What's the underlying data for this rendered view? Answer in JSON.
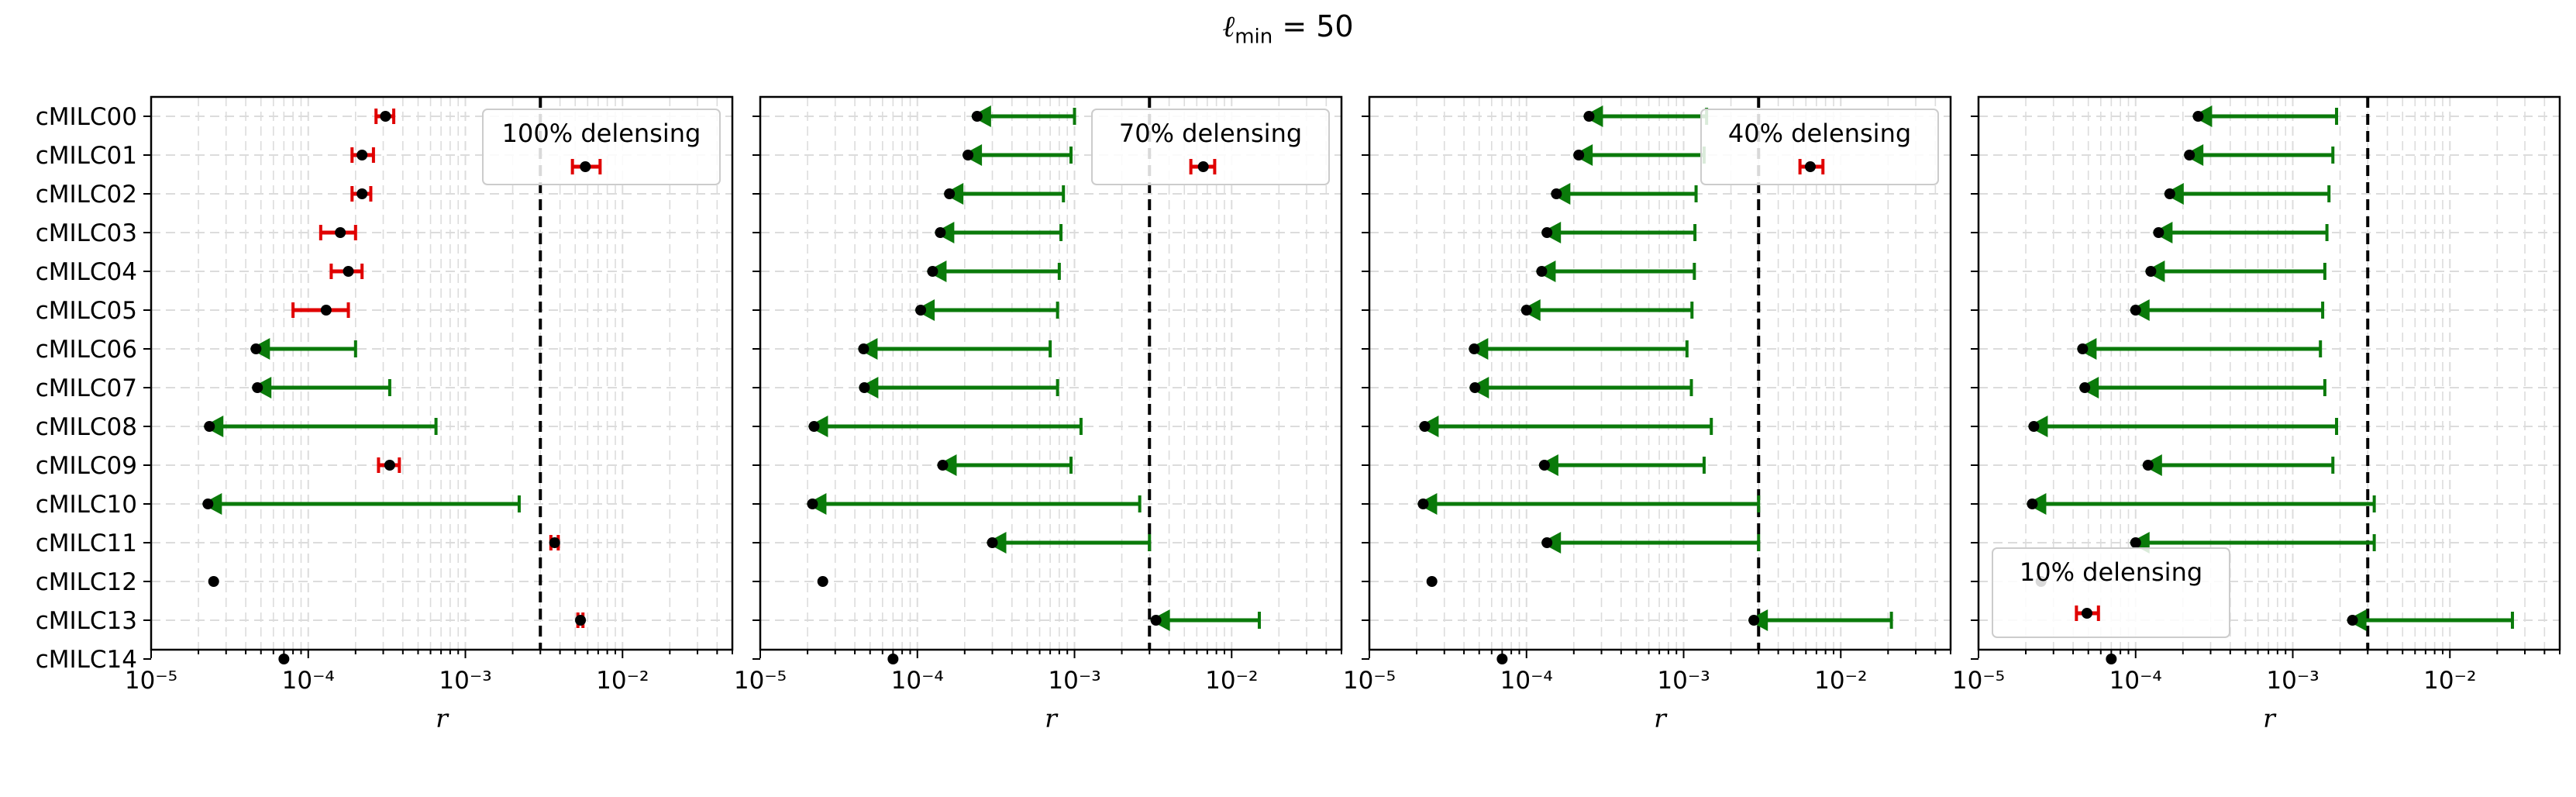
{
  "title": {
    "prefix": "ℓ",
    "sub": "min",
    "suffix": " = 50"
  },
  "colors": {
    "detection": "#e00000",
    "upper_limit": "#0a7a0a",
    "point": "#000000",
    "reference_line": "#000000",
    "grid": "#dcdcdc"
  },
  "chart_data": [
    {
      "type": "scatter",
      "legend": "100% delensing",
      "legend_placement": "top-right",
      "categories": [
        "cMILC00",
        "cMILC01",
        "cMILC02",
        "cMILC03",
        "cMILC04",
        "cMILC05",
        "cMILC06",
        "cMILC07",
        "cMILC08",
        "cMILC09",
        "cMILC10",
        "cMILC11",
        "cMILC12",
        "cMILC13",
        "cMILC14"
      ],
      "xscale": "log",
      "xlim": [
        1e-05,
        0.05
      ],
      "xlabel": "r",
      "xtick_labels": [
        "10⁻⁵",
        "10⁻⁴",
        "10⁻³",
        "10⁻²"
      ],
      "grid": true,
      "reference_line": 0.003,
      "points": [
        {
          "kind": "detection",
          "x": 0.00031,
          "lo": 0.00027,
          "hi": 0.00035
        },
        {
          "kind": "detection",
          "x": 0.00022,
          "lo": 0.00019,
          "hi": 0.00026
        },
        {
          "kind": "detection",
          "x": 0.00022,
          "lo": 0.00019,
          "hi": 0.00025
        },
        {
          "kind": "detection",
          "x": 0.00016,
          "lo": 0.00012,
          "hi": 0.0002
        },
        {
          "kind": "detection",
          "x": 0.00018,
          "lo": 0.00014,
          "hi": 0.00022
        },
        {
          "kind": "detection",
          "x": 0.00013,
          "lo": 8e-05,
          "hi": 0.00018
        },
        {
          "kind": "upper_limit",
          "x": 4.65e-05,
          "hi": 0.0002
        },
        {
          "kind": "upper_limit",
          "x": 4.75e-05,
          "hi": 0.00033
        },
        {
          "kind": "upper_limit",
          "x": 2.35e-05,
          "hi": 0.00065
        },
        {
          "kind": "detection",
          "x": 0.00033,
          "lo": 0.00028,
          "hi": 0.00038
        },
        {
          "kind": "upper_limit",
          "x": 2.3e-05,
          "hi": 0.0022
        },
        {
          "kind": "detection",
          "x": 0.0037,
          "lo": 0.0035,
          "hi": 0.0039
        },
        {
          "kind": "point",
          "x": 2.5e-05
        },
        {
          "kind": "detection",
          "x": 0.0054,
          "lo": 0.0052,
          "hi": 0.0056
        },
        {
          "kind": "point",
          "x": 7e-05
        }
      ],
      "legend_marker": {
        "kind": "detection",
        "x": 0.0058,
        "lo": 0.0048,
        "hi": 0.0072
      }
    },
    {
      "type": "scatter",
      "legend": "70% delensing",
      "legend_placement": "top-right",
      "categories": [
        "cMILC00",
        "cMILC01",
        "cMILC02",
        "cMILC03",
        "cMILC04",
        "cMILC05",
        "cMILC06",
        "cMILC07",
        "cMILC08",
        "cMILC09",
        "cMILC10",
        "cMILC11",
        "cMILC12",
        "cMILC13",
        "cMILC14"
      ],
      "xscale": "log",
      "xlim": [
        1e-05,
        0.05
      ],
      "xlabel": "r",
      "xtick_labels": [
        "10⁻⁵",
        "10⁻⁴",
        "10⁻³",
        "10⁻²"
      ],
      "grid": true,
      "reference_line": 0.003,
      "points": [
        {
          "kind": "upper_limit",
          "x": 0.00024,
          "hi": 0.001
        },
        {
          "kind": "upper_limit",
          "x": 0.00021,
          "hi": 0.00095
        },
        {
          "kind": "upper_limit",
          "x": 0.00016,
          "hi": 0.00085
        },
        {
          "kind": "upper_limit",
          "x": 0.00014,
          "hi": 0.00082
        },
        {
          "kind": "upper_limit",
          "x": 0.000125,
          "hi": 0.0008
        },
        {
          "kind": "upper_limit",
          "x": 0.000105,
          "hi": 0.00078
        },
        {
          "kind": "upper_limit",
          "x": 4.55e-05,
          "hi": 0.0007
        },
        {
          "kind": "upper_limit",
          "x": 4.6e-05,
          "hi": 0.00078
        },
        {
          "kind": "upper_limit",
          "x": 2.2e-05,
          "hi": 0.0011
        },
        {
          "kind": "upper_limit",
          "x": 0.000145,
          "hi": 0.00095
        },
        {
          "kind": "upper_limit",
          "x": 2.15e-05,
          "hi": 0.0026
        },
        {
          "kind": "upper_limit",
          "x": 0.0003,
          "hi": 0.003
        },
        {
          "kind": "point",
          "x": 2.5e-05
        },
        {
          "kind": "upper_limit",
          "x": 0.0033,
          "hi": 0.015
        },
        {
          "kind": "point",
          "x": 7e-05
        }
      ],
      "legend_marker": {
        "kind": "detection",
        "x": 0.0066,
        "lo": 0.0055,
        "hi": 0.0078
      }
    },
    {
      "type": "scatter",
      "legend": "40% delensing",
      "legend_placement": "top-right",
      "categories": [
        "cMILC00",
        "cMILC01",
        "cMILC02",
        "cMILC03",
        "cMILC04",
        "cMILC05",
        "cMILC06",
        "cMILC07",
        "cMILC08",
        "cMILC09",
        "cMILC10",
        "cMILC11",
        "cMILC12",
        "cMILC13",
        "cMILC14"
      ],
      "xscale": "log",
      "xlim": [
        1e-05,
        0.05
      ],
      "xlabel": "r",
      "xtick_labels": [
        "10⁻⁵",
        "10⁻⁴",
        "10⁻³",
        "10⁻²"
      ],
      "grid": true,
      "reference_line": 0.003,
      "points": [
        {
          "kind": "upper_limit",
          "x": 0.00025,
          "hi": 0.0014
        },
        {
          "kind": "upper_limit",
          "x": 0.000215,
          "hi": 0.00135
        },
        {
          "kind": "upper_limit",
          "x": 0.000155,
          "hi": 0.0012
        },
        {
          "kind": "upper_limit",
          "x": 0.000135,
          "hi": 0.00118
        },
        {
          "kind": "upper_limit",
          "x": 0.000125,
          "hi": 0.00117
        },
        {
          "kind": "upper_limit",
          "x": 0.0001,
          "hi": 0.00113
        },
        {
          "kind": "upper_limit",
          "x": 4.65e-05,
          "hi": 0.00105
        },
        {
          "kind": "upper_limit",
          "x": 4.7e-05,
          "hi": 0.00112
        },
        {
          "kind": "upper_limit",
          "x": 2.25e-05,
          "hi": 0.0015
        },
        {
          "kind": "upper_limit",
          "x": 0.00013,
          "hi": 0.00135
        },
        {
          "kind": "upper_limit",
          "x": 2.2e-05,
          "hi": 0.003
        },
        {
          "kind": "upper_limit",
          "x": 0.000135,
          "hi": 0.003
        },
        {
          "kind": "point",
          "x": 2.5e-05
        },
        {
          "kind": "upper_limit",
          "x": 0.0028,
          "hi": 0.021
        },
        {
          "kind": "point",
          "x": 7e-05
        }
      ],
      "legend_marker": {
        "kind": "detection",
        "x": 0.0064,
        "lo": 0.0055,
        "hi": 0.0077
      }
    },
    {
      "type": "scatter",
      "legend": "10% delensing",
      "legend_placement": "bottom-left",
      "categories": [
        "cMILC00",
        "cMILC01",
        "cMILC02",
        "cMILC03",
        "cMILC04",
        "cMILC05",
        "cMILC06",
        "cMILC07",
        "cMILC08",
        "cMILC09",
        "cMILC10",
        "cMILC11",
        "cMILC12",
        "cMILC13",
        "cMILC14"
      ],
      "xscale": "log",
      "xlim": [
        1e-05,
        0.05
      ],
      "xlabel": "r",
      "xtick_labels": [
        "10⁻⁵",
        "10⁻⁴",
        "10⁻³",
        "10⁻²"
      ],
      "grid": true,
      "reference_line": 0.003,
      "points": [
        {
          "kind": "upper_limit",
          "x": 0.00025,
          "hi": 0.0019
        },
        {
          "kind": "upper_limit",
          "x": 0.00022,
          "hi": 0.0018
        },
        {
          "kind": "upper_limit",
          "x": 0.000165,
          "hi": 0.0017
        },
        {
          "kind": "upper_limit",
          "x": 0.00014,
          "hi": 0.00165
        },
        {
          "kind": "upper_limit",
          "x": 0.000125,
          "hi": 0.0016
        },
        {
          "kind": "upper_limit",
          "x": 0.0001,
          "hi": 0.00155
        },
        {
          "kind": "upper_limit",
          "x": 4.6e-05,
          "hi": 0.0015
        },
        {
          "kind": "upper_limit",
          "x": 4.75e-05,
          "hi": 0.0016
        },
        {
          "kind": "upper_limit",
          "x": 2.25e-05,
          "hi": 0.0019
        },
        {
          "kind": "upper_limit",
          "x": 0.00012,
          "hi": 0.0018
        },
        {
          "kind": "upper_limit",
          "x": 2.2e-05,
          "hi": 0.0033
        },
        {
          "kind": "upper_limit",
          "x": 0.0001,
          "hi": 0.0033
        },
        {
          "kind": "point",
          "x": 2.5e-05
        },
        {
          "kind": "upper_limit",
          "x": 0.0024,
          "hi": 0.025
        },
        {
          "kind": "point",
          "x": 7e-05
        }
      ],
      "legend_marker": {
        "kind": "detection",
        "x": 4.9e-05,
        "lo": 4.2e-05,
        "hi": 5.8e-05
      }
    }
  ]
}
